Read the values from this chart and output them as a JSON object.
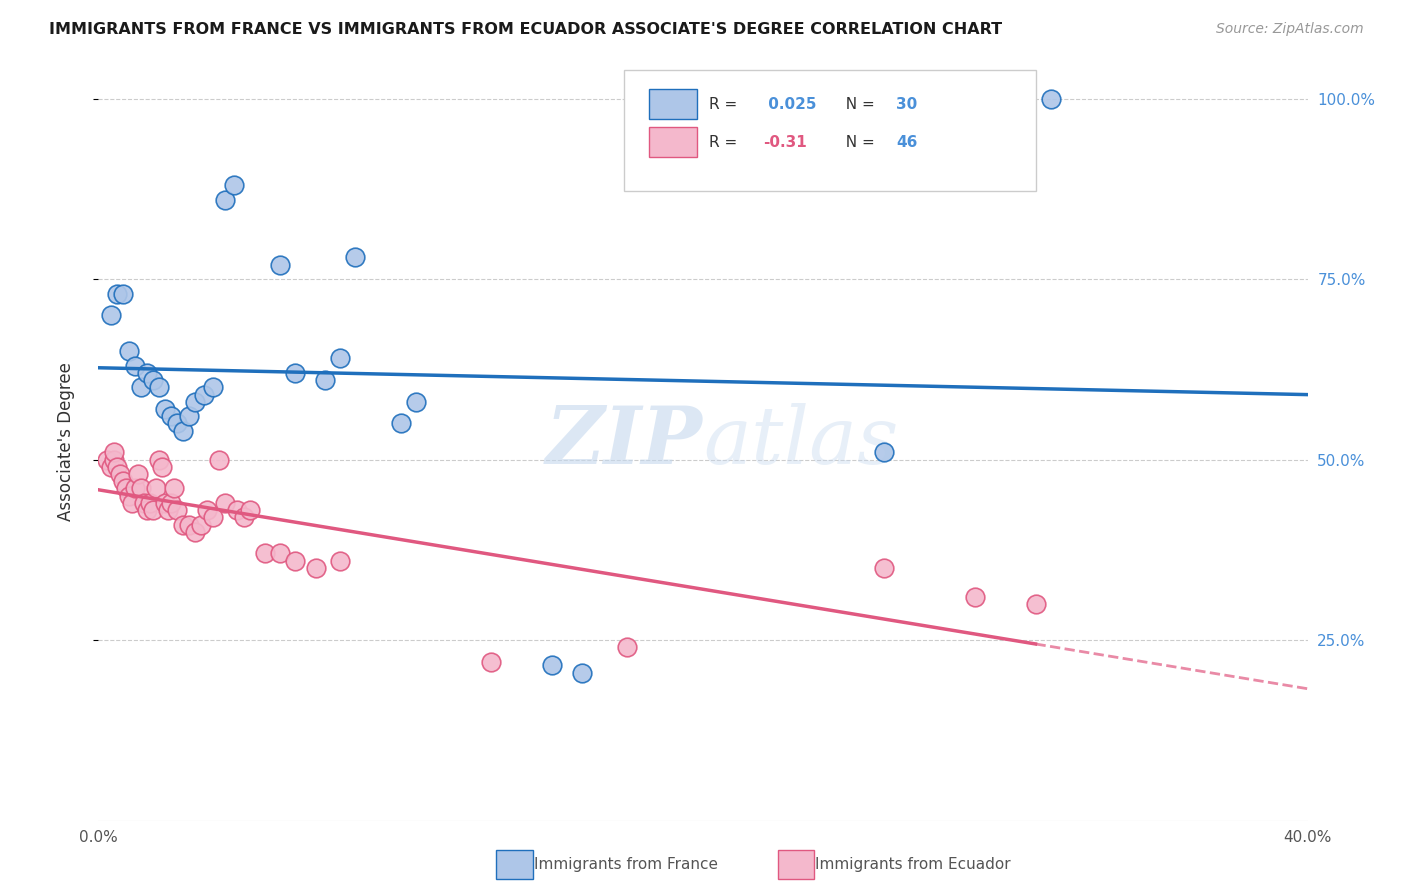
{
  "title": "IMMIGRANTS FROM FRANCE VS IMMIGRANTS FROM ECUADOR ASSOCIATE'S DEGREE CORRELATION CHART",
  "source": "Source: ZipAtlas.com",
  "ylabel": "Associate's Degree",
  "watermark": "ZIPatlas",
  "france_R": 0.025,
  "france_N": 30,
  "ecuador_R": -0.31,
  "ecuador_N": 46,
  "xlim": [
    0.0,
    0.4
  ],
  "ylim": [
    0.0,
    1.05
  ],
  "yticks": [
    0.25,
    0.5,
    0.75,
    1.0
  ],
  "ytick_labels": [
    "25.0%",
    "50.0%",
    "75.0%",
    "100.0%"
  ],
  "france_color": "#aec6e8",
  "france_line_color": "#1f6fbc",
  "ecuador_color": "#f4b8cc",
  "ecuador_line_color": "#e05880",
  "france_points_x": [
    0.004,
    0.006,
    0.008,
    0.01,
    0.012,
    0.014,
    0.016,
    0.018,
    0.02,
    0.022,
    0.024,
    0.026,
    0.028,
    0.03,
    0.032,
    0.035,
    0.038,
    0.042,
    0.045,
    0.06,
    0.065,
    0.075,
    0.08,
    0.085,
    0.1,
    0.105,
    0.15,
    0.16,
    0.26,
    0.315
  ],
  "france_points_y": [
    0.7,
    0.73,
    0.73,
    0.65,
    0.63,
    0.6,
    0.62,
    0.61,
    0.6,
    0.57,
    0.56,
    0.55,
    0.54,
    0.56,
    0.58,
    0.59,
    0.6,
    0.86,
    0.88,
    0.77,
    0.62,
    0.61,
    0.64,
    0.78,
    0.55,
    0.58,
    0.215,
    0.205,
    0.51,
    1.0
  ],
  "ecuador_points_x": [
    0.003,
    0.004,
    0.005,
    0.005,
    0.006,
    0.007,
    0.008,
    0.009,
    0.01,
    0.011,
    0.012,
    0.013,
    0.014,
    0.015,
    0.016,
    0.017,
    0.018,
    0.019,
    0.02,
    0.021,
    0.022,
    0.023,
    0.024,
    0.025,
    0.026,
    0.028,
    0.03,
    0.032,
    0.034,
    0.036,
    0.038,
    0.04,
    0.042,
    0.046,
    0.048,
    0.05,
    0.055,
    0.06,
    0.065,
    0.072,
    0.08,
    0.13,
    0.175,
    0.26,
    0.29,
    0.31
  ],
  "ecuador_points_y": [
    0.5,
    0.49,
    0.5,
    0.51,
    0.49,
    0.48,
    0.47,
    0.46,
    0.45,
    0.44,
    0.46,
    0.48,
    0.46,
    0.44,
    0.43,
    0.44,
    0.43,
    0.46,
    0.5,
    0.49,
    0.44,
    0.43,
    0.44,
    0.46,
    0.43,
    0.41,
    0.41,
    0.4,
    0.41,
    0.43,
    0.42,
    0.5,
    0.44,
    0.43,
    0.42,
    0.43,
    0.37,
    0.37,
    0.36,
    0.35,
    0.36,
    0.22,
    0.24,
    0.35,
    0.31,
    0.3
  ]
}
